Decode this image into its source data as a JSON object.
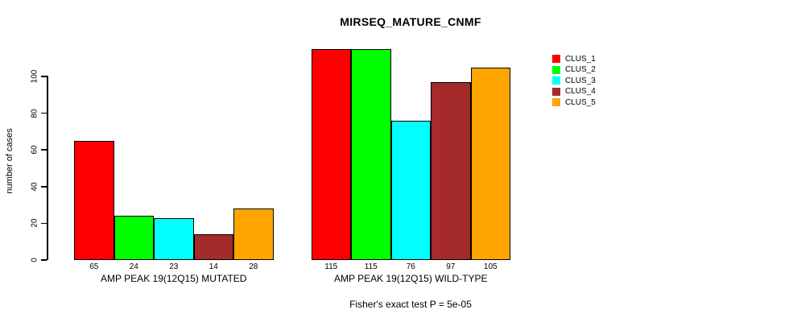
{
  "chart_data": {
    "type": "bar",
    "title": "MIRSEQ_MATURE_CNMF",
    "xlabel": "",
    "ylabel": "number of cases",
    "annotation": "Fisher's exact test P = 5e-05",
    "ylim": [
      0,
      115
    ],
    "yticks": [
      0,
      20,
      40,
      60,
      80,
      100
    ],
    "grid": false,
    "legend_position": "right",
    "show_bar_values": true,
    "categories": [
      "AMP PEAK 19(12Q15) MUTATED",
      "AMP PEAK 19(12Q15) WILD-TYPE"
    ],
    "series": [
      {
        "name": "CLUS_1",
        "color": "#FF0000",
        "values": [
          65,
          115
        ]
      },
      {
        "name": "CLUS_2",
        "color": "#00FF00",
        "values": [
          24,
          115
        ]
      },
      {
        "name": "CLUS_3",
        "color": "#00FFFF",
        "values": [
          23,
          76
        ]
      },
      {
        "name": "CLUS_4",
        "color": "#A52A2A",
        "values": [
          14,
          97
        ]
      },
      {
        "name": "CLUS_5",
        "color": "#FFA500",
        "values": [
          28,
          105
        ]
      }
    ]
  }
}
